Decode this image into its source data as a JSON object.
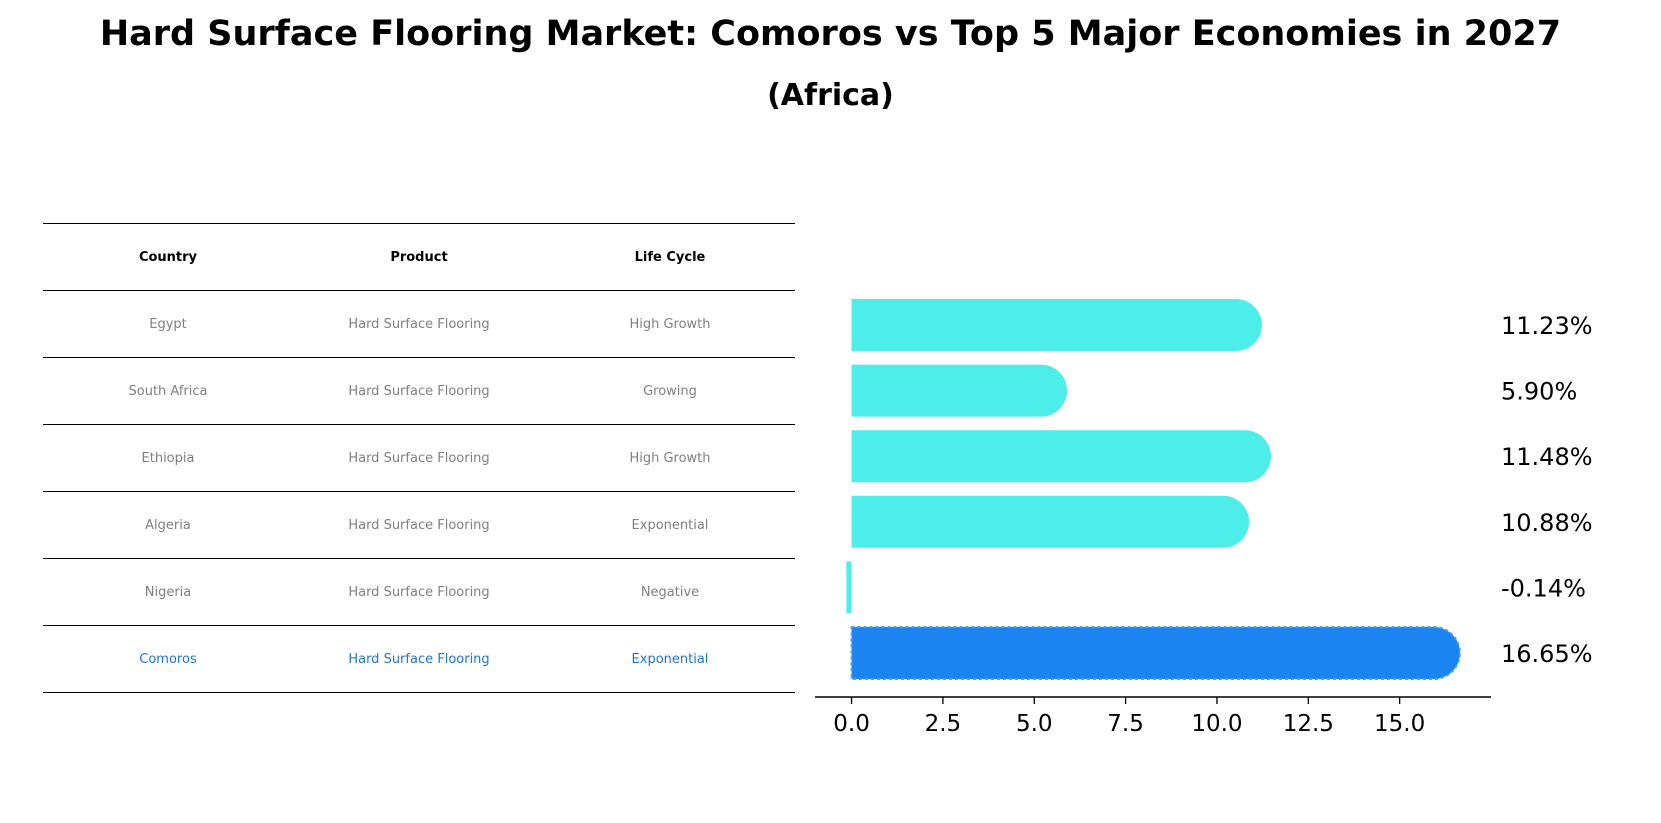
{
  "title": "Hard Surface Flooring Market: Comoros vs Top 5 Major Economies in 2027",
  "subtitle": "(Africa)",
  "table": {
    "headers": [
      "Country",
      "Product",
      "Life Cycle"
    ],
    "rows": [
      {
        "country": "Egypt",
        "product": "Hard Surface Flooring",
        "life_cycle": "High Growth"
      },
      {
        "country": "South Africa",
        "product": "Hard Surface Flooring",
        "life_cycle": "Growing"
      },
      {
        "country": "Ethiopia",
        "product": "Hard Surface Flooring",
        "life_cycle": "High Growth"
      },
      {
        "country": "Algeria",
        "product": "Hard Surface Flooring",
        "life_cycle": "Exponential"
      },
      {
        "country": "Nigeria",
        "product": "Hard Surface Flooring",
        "life_cycle": "Negative"
      },
      {
        "country": "Comoros",
        "product": "Hard Surface Flooring",
        "life_cycle": "Exponential"
      }
    ]
  },
  "chart_data": {
    "type": "bar",
    "orientation": "horizontal",
    "categories": [
      "Egypt",
      "South Africa",
      "Ethiopia",
      "Algeria",
      "Nigeria",
      "Comoros"
    ],
    "values": [
      11.23,
      5.9,
      11.48,
      10.88,
      -0.14,
      16.65
    ],
    "value_labels": [
      "11.23%",
      "5.90%",
      "11.48%",
      "10.88%",
      "-0.14%",
      "16.65%"
    ],
    "highlight": "Comoros",
    "xticks": [
      0.0,
      2.5,
      5.0,
      7.5,
      10.0,
      12.5,
      15.0
    ],
    "xtick_labels": [
      "0.0",
      "2.5",
      "5.0",
      "7.5",
      "10.0",
      "12.5",
      "15.0"
    ],
    "xlim": [
      -1.0,
      17.5
    ],
    "xlabel": "",
    "ylabel": "",
    "grid": false
  },
  "colors": {
    "bar": "#4deeea",
    "highlight": "#1a85f0",
    "highlight_text": "#1f77d4",
    "muted_text": "#808080"
  }
}
